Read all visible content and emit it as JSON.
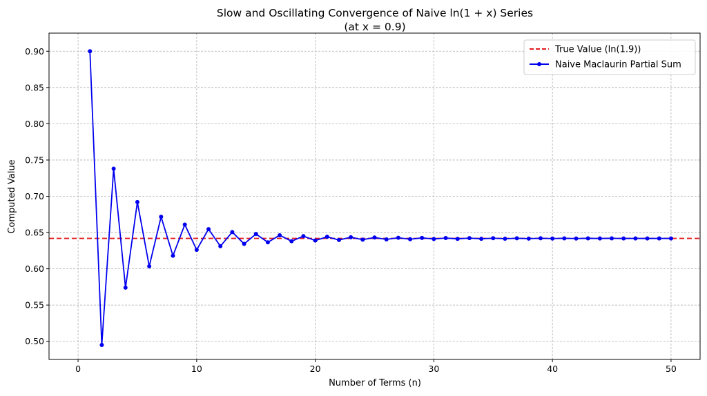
{
  "chart_data": {
    "type": "line",
    "title": "Slow and Oscillating Convergence of Naive ln(1 + x) Series",
    "subtitle": "(at x = 0.9)",
    "xlabel": "Number of Terms (n)",
    "ylabel": "Computed Value",
    "xlim": [
      -2.45,
      52.45
    ],
    "ylim": [
      0.475,
      0.925
    ],
    "xticks": [
      0,
      10,
      20,
      30,
      40,
      50
    ],
    "yticks": [
      0.5,
      0.55,
      0.6,
      0.65,
      0.7,
      0.75,
      0.8,
      0.85,
      0.9
    ],
    "xtick_labels": [
      "0",
      "10",
      "20",
      "30",
      "40",
      "50"
    ],
    "ytick_labels": [
      "0.50",
      "0.55",
      "0.60",
      "0.65",
      "0.70",
      "0.75",
      "0.80",
      "0.85",
      "0.90"
    ],
    "grid": true,
    "legend_position": "top-right",
    "hline": {
      "name": "True Value (ln(1.9))",
      "value": 0.6419,
      "color": "#e31a1c",
      "style": "dashed"
    },
    "series": [
      {
        "name": "Naive Maclaurin Partial Sum",
        "color": "#0000ee",
        "marker": "circle",
        "x": [
          1,
          2,
          3,
          4,
          5,
          6,
          7,
          8,
          9,
          10,
          11,
          12,
          13,
          14,
          15,
          16,
          17,
          18,
          19,
          20,
          21,
          22,
          23,
          24,
          25,
          26,
          27,
          28,
          29,
          30,
          31,
          32,
          33,
          34,
          35,
          36,
          37,
          38,
          39,
          40,
          41,
          42,
          43,
          44,
          45,
          46,
          47,
          48,
          49,
          50
        ],
        "values": [
          0.9,
          0.495,
          0.738,
          0.574,
          0.692,
          0.6034,
          0.6717,
          0.618,
          0.661,
          0.6261,
          0.6547,
          0.6311,
          0.6507,
          0.6343,
          0.648,
          0.6365,
          0.6463,
          0.638,
          0.645,
          0.639,
          0.6441,
          0.6397,
          0.6435,
          0.6402,
          0.6431,
          0.6405,
          0.6428,
          0.6408,
          0.6426,
          0.6411,
          0.6424,
          0.6413,
          0.6423,
          0.6414,
          0.6422,
          0.6415,
          0.6421,
          0.6416,
          0.6421,
          0.6417,
          0.642,
          0.6417,
          0.642,
          0.6418,
          0.642,
          0.6418,
          0.6419,
          0.6418,
          0.6419,
          0.6418
        ]
      }
    ]
  }
}
